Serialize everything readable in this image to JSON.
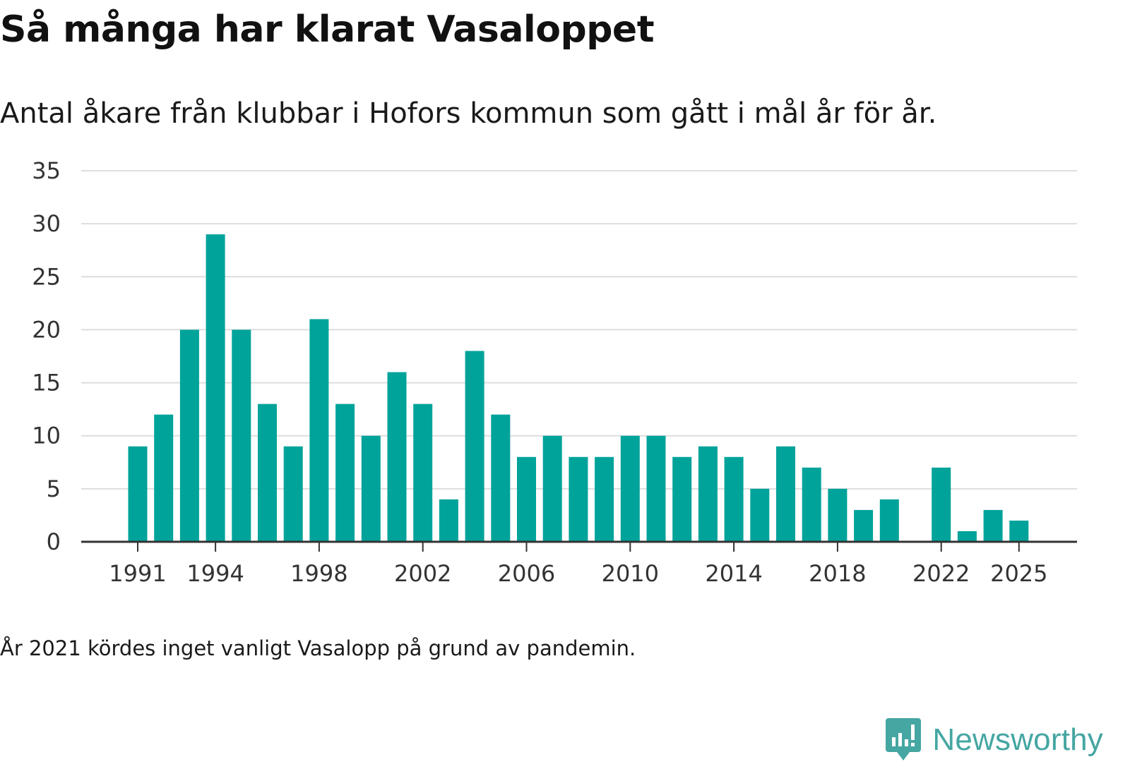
{
  "title": "Så många har klarat Vasaloppet",
  "subtitle": "Antal åkare från klubbar i Hofors kommun som gått i mål år för år.",
  "footnote": "År 2021 kördes inget vanligt Vasalopp på grund av pandemin.",
  "brand": {
    "name": "Newsworthy",
    "icon": "newsworthy-logo-icon",
    "color": "#45a6a2"
  },
  "colors": {
    "bar": "#00a39a",
    "grid": "#dddddd",
    "axis": "#333333",
    "text": "#333333"
  },
  "chart_data": {
    "type": "bar",
    "title": "Så många har klarat Vasaloppet",
    "xlabel": "",
    "ylabel": "",
    "ylim": [
      0,
      35
    ],
    "yticks": [
      0,
      5,
      10,
      15,
      20,
      25,
      30,
      35
    ],
    "xtick_labels": [
      "1991",
      "1994",
      "1998",
      "2002",
      "2006",
      "2010",
      "2014",
      "2018",
      "2022",
      "2025"
    ],
    "grid": true,
    "categories": [
      1991,
      1992,
      1993,
      1994,
      1995,
      1996,
      1997,
      1998,
      1999,
      2000,
      2001,
      2002,
      2003,
      2004,
      2005,
      2006,
      2007,
      2008,
      2009,
      2010,
      2011,
      2012,
      2013,
      2014,
      2015,
      2016,
      2017,
      2018,
      2019,
      2020,
      2021,
      2022,
      2023,
      2024,
      2025
    ],
    "values": [
      9,
      12,
      20,
      29,
      20,
      13,
      9,
      21,
      13,
      10,
      16,
      13,
      4,
      18,
      12,
      8,
      10,
      8,
      8,
      10,
      10,
      8,
      9,
      8,
      5,
      9,
      7,
      5,
      3,
      4,
      null,
      7,
      1,
      3,
      2
    ]
  }
}
